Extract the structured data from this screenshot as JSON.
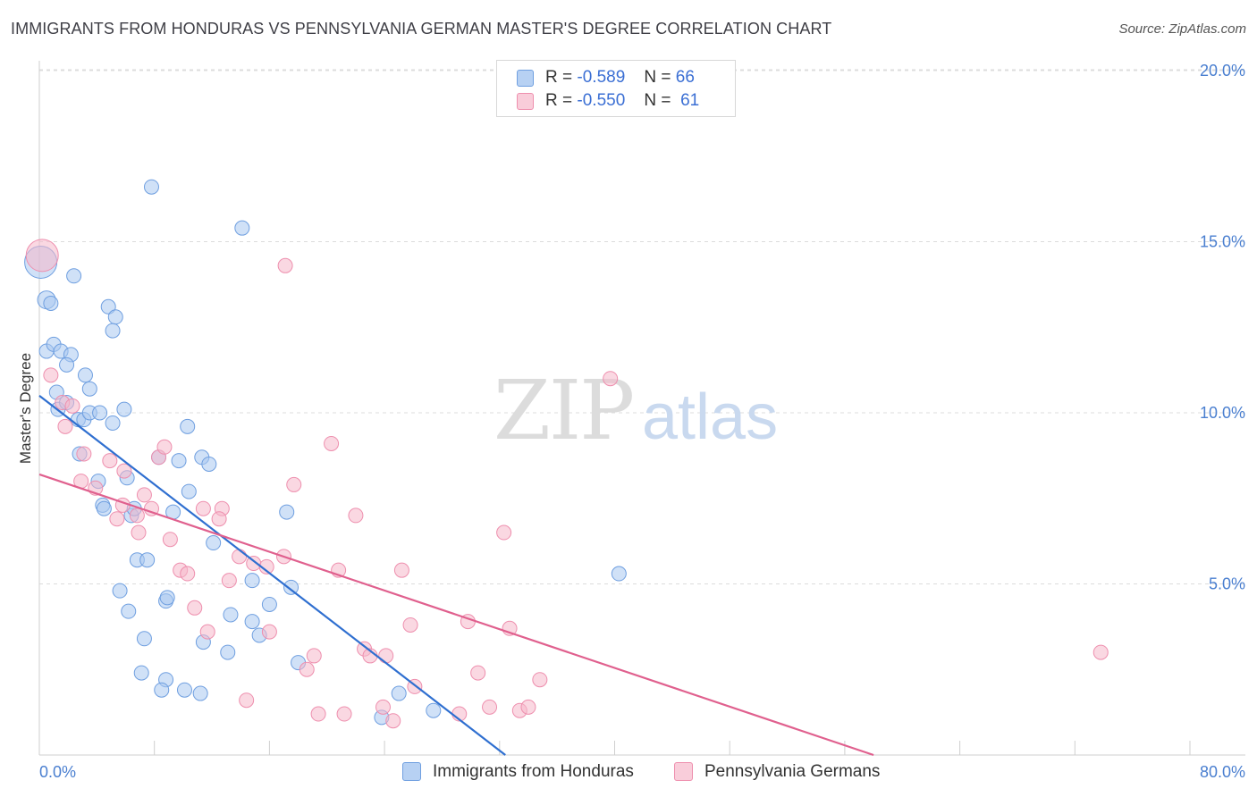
{
  "title": "IMMIGRANTS FROM HONDURAS VS PENNSYLVANIA GERMAN MASTER'S DEGREE CORRELATION CHART",
  "source": "Source: ZipAtlas.com",
  "watermark": {
    "zip": "ZIP",
    "atlas": "atlas"
  },
  "legend": {
    "rows": [
      {
        "r_label": "R =",
        "r_value": "-0.589",
        "n_label": "N =",
        "n_value": "66"
      },
      {
        "r_label": "R =",
        "r_value": "-0.550",
        "n_label": "N =",
        "n_value": "61"
      }
    ]
  },
  "colors": {
    "blue_fill": "#a9c8f0",
    "blue_stroke": "#6f9fe0",
    "blue_line": "#2f6fd0",
    "pink_fill": "#f6b8cb",
    "pink_stroke": "#ee8fae",
    "pink_line": "#e0608e",
    "grid": "#dcdcdc",
    "axis_label": "#4a7fd0"
  },
  "chart_data": {
    "type": "scatter",
    "title": "IMMIGRANTS FROM HONDURAS VS PENNSYLVANIA GERMAN MASTER'S DEGREE CORRELATION CHART",
    "xlabel": "",
    "ylabel": "Master's Degree",
    "xlim": [
      0,
      80
    ],
    "ylim": [
      0,
      20
    ],
    "x_tick_labels": [
      "0.0%",
      "80.0%"
    ],
    "y_tick_values": [
      5,
      10,
      15,
      20
    ],
    "y_tick_labels": [
      "5.0%",
      "10.0%",
      "15.0%",
      "20.0%"
    ],
    "grid": true,
    "legend_position": "top-center",
    "series": [
      {
        "name": "Immigrants from Honduras",
        "color": "#a9c8f0",
        "r": -0.589,
        "n": 66,
        "trend": {
          "x": [
            0,
            32.4
          ],
          "y": [
            10.5,
            0
          ]
        },
        "points": [
          [
            0.1,
            14.4,
            18
          ],
          [
            0.5,
            13.3,
            10
          ],
          [
            0.8,
            13.2,
            8
          ],
          [
            0.5,
            11.8,
            8
          ],
          [
            1.0,
            12.0,
            8
          ],
          [
            1.5,
            11.8,
            8
          ],
          [
            2.2,
            11.7,
            8
          ],
          [
            1.9,
            11.4,
            8
          ],
          [
            2.4,
            14.0,
            8
          ],
          [
            3.2,
            11.1,
            8
          ],
          [
            1.2,
            10.6,
            8
          ],
          [
            1.3,
            10.1,
            8
          ],
          [
            1.9,
            10.3,
            8
          ],
          [
            3.5,
            10.7,
            8
          ],
          [
            2.7,
            9.8,
            8
          ],
          [
            3.1,
            9.8,
            8
          ],
          [
            3.5,
            10.0,
            8
          ],
          [
            4.2,
            10.0,
            8
          ],
          [
            5.1,
            9.7,
            8
          ],
          [
            5.9,
            10.1,
            8
          ],
          [
            4.8,
            13.1,
            8
          ],
          [
            5.3,
            12.8,
            8
          ],
          [
            5.1,
            12.4,
            8
          ],
          [
            7.8,
            16.6,
            8
          ],
          [
            14.1,
            15.4,
            8
          ],
          [
            2.8,
            8.8,
            8
          ],
          [
            4.1,
            8.0,
            8
          ],
          [
            4.4,
            7.3,
            8
          ],
          [
            4.5,
            7.2,
            8
          ],
          [
            6.1,
            8.1,
            8
          ],
          [
            6.4,
            7.0,
            8
          ],
          [
            6.6,
            7.2,
            8
          ],
          [
            8.3,
            8.7,
            8
          ],
          [
            9.7,
            8.6,
            8
          ],
          [
            10.3,
            9.6,
            8
          ],
          [
            11.3,
            8.7,
            8
          ],
          [
            11.8,
            8.5,
            8
          ],
          [
            10.4,
            7.7,
            8
          ],
          [
            9.3,
            7.1,
            8
          ],
          [
            12.1,
            6.2,
            8
          ],
          [
            17.2,
            7.1,
            8
          ],
          [
            6.8,
            5.7,
            8
          ],
          [
            7.5,
            5.7,
            8
          ],
          [
            8.8,
            4.5,
            8
          ],
          [
            8.9,
            4.6,
            8
          ],
          [
            5.6,
            4.8,
            8
          ],
          [
            6.2,
            4.2,
            8
          ],
          [
            7.3,
            3.4,
            8
          ],
          [
            11.4,
            3.3,
            8
          ],
          [
            13.3,
            4.1,
            8
          ],
          [
            14.8,
            5.1,
            8
          ],
          [
            14.8,
            3.9,
            8
          ],
          [
            15.3,
            3.5,
            8
          ],
          [
            16.0,
            4.4,
            8
          ],
          [
            17.5,
            4.9,
            8
          ],
          [
            13.1,
            3.0,
            8
          ],
          [
            18.0,
            2.7,
            8
          ],
          [
            7.1,
            2.4,
            8
          ],
          [
            8.8,
            2.2,
            8
          ],
          [
            8.5,
            1.9,
            8
          ],
          [
            10.1,
            1.9,
            8
          ],
          [
            11.2,
            1.8,
            8
          ],
          [
            23.8,
            1.1,
            8
          ],
          [
            25.0,
            1.8,
            8
          ],
          [
            27.4,
            1.3,
            8
          ],
          [
            40.3,
            5.3,
            8
          ]
        ]
      },
      {
        "name": "Pennsylvania Germans",
        "color": "#f6b8cb",
        "r": -0.55,
        "n": 61,
        "trend": {
          "x": [
            0,
            58.0
          ],
          "y": [
            8.2,
            0
          ]
        },
        "points": [
          [
            0.2,
            14.6,
            18
          ],
          [
            0.8,
            11.1,
            8
          ],
          [
            1.6,
            10.3,
            8
          ],
          [
            2.3,
            10.2,
            8
          ],
          [
            1.8,
            9.6,
            8
          ],
          [
            3.1,
            8.8,
            8
          ],
          [
            4.9,
            8.6,
            8
          ],
          [
            2.9,
            8.0,
            8
          ],
          [
            3.9,
            7.8,
            8
          ],
          [
            5.9,
            8.3,
            8
          ],
          [
            5.8,
            7.3,
            8
          ],
          [
            7.3,
            7.6,
            8
          ],
          [
            8.3,
            8.7,
            8
          ],
          [
            8.7,
            9.0,
            8
          ],
          [
            7.8,
            7.2,
            8
          ],
          [
            5.4,
            6.9,
            8
          ],
          [
            6.8,
            7.0,
            8
          ],
          [
            6.9,
            6.5,
            8
          ],
          [
            9.1,
            6.3,
            8
          ],
          [
            11.4,
            7.2,
            8
          ],
          [
            12.7,
            7.2,
            8
          ],
          [
            12.5,
            6.9,
            8
          ],
          [
            9.8,
            5.4,
            8
          ],
          [
            10.3,
            5.3,
            8
          ],
          [
            13.2,
            5.1,
            8
          ],
          [
            13.9,
            5.8,
            8
          ],
          [
            14.9,
            5.6,
            8
          ],
          [
            15.8,
            5.5,
            8
          ],
          [
            17.0,
            5.8,
            8
          ],
          [
            17.7,
            7.9,
            8
          ],
          [
            20.3,
            9.1,
            8
          ],
          [
            22.0,
            7.0,
            8
          ],
          [
            20.8,
            5.4,
            8
          ],
          [
            25.2,
            5.4,
            8
          ],
          [
            10.8,
            4.3,
            8
          ],
          [
            11.7,
            3.6,
            8
          ],
          [
            16.0,
            3.6,
            8
          ],
          [
            19.1,
            2.9,
            8
          ],
          [
            18.6,
            2.5,
            8
          ],
          [
            22.6,
            3.1,
            8
          ],
          [
            23.0,
            2.9,
            8
          ],
          [
            24.1,
            2.9,
            8
          ],
          [
            25.8,
            3.8,
            8
          ],
          [
            29.8,
            3.9,
            8
          ],
          [
            30.5,
            2.4,
            8
          ],
          [
            32.3,
            6.5,
            8
          ],
          [
            32.7,
            3.7,
            8
          ],
          [
            34.8,
            2.2,
            8
          ],
          [
            26.1,
            2.0,
            8
          ],
          [
            14.4,
            1.6,
            8
          ],
          [
            19.4,
            1.2,
            8
          ],
          [
            21.2,
            1.2,
            8
          ],
          [
            23.9,
            1.4,
            8
          ],
          [
            24.6,
            1.0,
            8
          ],
          [
            29.2,
            1.2,
            8
          ],
          [
            31.3,
            1.4,
            8
          ],
          [
            33.4,
            1.3,
            8
          ],
          [
            34.0,
            1.4,
            8
          ],
          [
            17.1,
            14.3,
            8
          ],
          [
            39.7,
            11.0,
            8
          ],
          [
            73.8,
            3.0,
            8
          ]
        ]
      }
    ]
  }
}
